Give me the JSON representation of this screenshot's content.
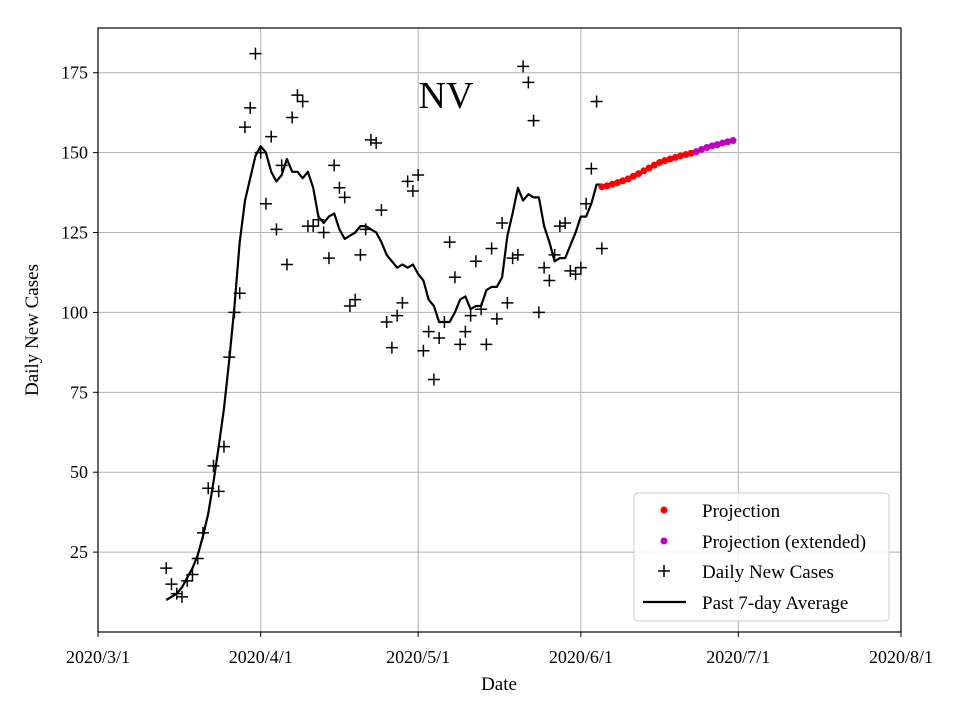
{
  "chart_data": {
    "type": "line",
    "title": "NV",
    "xlabel": "Date",
    "ylabel": "Daily New Cases",
    "xlim_day": [
      0,
      153
    ],
    "ylim": [
      0,
      189
    ],
    "x_ticks": [
      {
        "label": "2020/3/1",
        "day": 0
      },
      {
        "label": "2020/4/1",
        "day": 31
      },
      {
        "label": "2020/5/1",
        "day": 61
      },
      {
        "label": "2020/6/1",
        "day": 92
      },
      {
        "label": "2020/7/1",
        "day": 122
      },
      {
        "label": "2020/8/1",
        "day": 153
      }
    ],
    "y_ticks": [
      25,
      50,
      75,
      100,
      125,
      150,
      175
    ],
    "grid": true,
    "legend_position": "lower-right",
    "legend": {
      "projection": "Projection",
      "projection_extended": "Projection (extended)",
      "daily_new_cases": "Daily New Cases",
      "past_7day_average": "Past 7-day Average"
    },
    "colors": {
      "projection": "#ff0000",
      "projection_extended": "#bf00bf",
      "daily_new_cases": "#000000",
      "past_7day_average": "#000000",
      "grid": "#b0b0b0"
    },
    "series": [
      {
        "name": "Daily New Cases",
        "marker": "+",
        "x_day": [
          13,
          14,
          15,
          16,
          17,
          18,
          19,
          20,
          21,
          22,
          23,
          24,
          25,
          26,
          27,
          28,
          29,
          30,
          31,
          32,
          33,
          34,
          35,
          36,
          37,
          38,
          39,
          40,
          41,
          42,
          43,
          44,
          45,
          46,
          47,
          48,
          49,
          50,
          51,
          52,
          53,
          54,
          55,
          56,
          57,
          58,
          59,
          60,
          61,
          62,
          63,
          64,
          65,
          66,
          67,
          68,
          69,
          70,
          71,
          72,
          73,
          74,
          75,
          76,
          77,
          78,
          79,
          80,
          81,
          82,
          83,
          84,
          85,
          86,
          87,
          88,
          89,
          90,
          91,
          92,
          93,
          94,
          95,
          96
        ],
        "values": [
          20,
          15,
          12,
          11,
          16,
          18,
          23,
          31,
          45,
          52,
          44,
          58,
          86,
          100,
          106,
          158,
          164,
          181,
          150,
          134,
          155,
          126,
          146,
          115,
          161,
          168,
          166,
          127,
          127,
          129,
          125,
          117,
          146,
          139,
          136,
          102,
          104,
          118,
          126,
          154,
          153,
          132,
          97,
          89,
          99,
          103,
          141,
          138,
          143,
          88,
          94,
          79,
          92,
          97,
          122,
          111,
          90,
          94,
          99,
          116,
          101,
          90,
          120,
          98,
          128,
          103,
          117,
          118,
          177,
          172,
          160,
          100,
          114,
          110,
          118,
          127,
          128,
          113,
          112,
          114,
          134,
          145,
          166,
          120
        ]
      },
      {
        "name": "Past 7-day Average",
        "x_day": [
          13,
          14,
          15,
          16,
          17,
          18,
          19,
          20,
          21,
          22,
          23,
          24,
          25,
          26,
          27,
          28,
          29,
          30,
          31,
          32,
          33,
          34,
          35,
          36,
          37,
          38,
          39,
          40,
          41,
          42,
          43,
          44,
          45,
          46,
          47,
          48,
          49,
          50,
          51,
          52,
          53,
          54,
          55,
          56,
          57,
          58,
          59,
          60,
          61,
          62,
          63,
          64,
          65,
          66,
          67,
          68,
          69,
          70,
          71,
          72,
          73,
          74,
          75,
          76,
          77,
          78,
          79,
          80,
          81,
          82,
          83,
          84,
          85,
          86,
          87,
          88,
          89,
          90,
          91,
          92,
          93,
          94,
          95,
          96
        ],
        "values": [
          10,
          11,
          12,
          14,
          17,
          20,
          24,
          30,
          37,
          47,
          58,
          70,
          85,
          102,
          122,
          135,
          142,
          149,
          152,
          150,
          144,
          141,
          143,
          148,
          144,
          144,
          142,
          144,
          139,
          130,
          128,
          130,
          131,
          126,
          123,
          124,
          125,
          127,
          127,
          126,
          125,
          122,
          118,
          116,
          114,
          115,
          114,
          115,
          112,
          110,
          104,
          102,
          97,
          97,
          97,
          100,
          104,
          105,
          101,
          102,
          102,
          107,
          108,
          108,
          111,
          124,
          131,
          139,
          135,
          137,
          136,
          136,
          127,
          122,
          116,
          117,
          117,
          121,
          125,
          130,
          130,
          134,
          140,
          140
        ]
      },
      {
        "name": "Projection",
        "marker": "o",
        "x_day": [
          96,
          97,
          98,
          99,
          100,
          101,
          102,
          103,
          104,
          105,
          106,
          107,
          108,
          109,
          110,
          111,
          112,
          113
        ],
        "values": [
          139.3,
          139.6,
          140.1,
          140.6,
          141.2,
          141.8,
          142.6,
          143.4,
          144.3,
          145.2,
          146.1,
          146.9,
          147.5,
          148,
          148.5,
          149,
          149.4,
          149.8
        ]
      },
      {
        "name": "Projection (extended)",
        "marker": "o",
        "x_day": [
          114,
          115,
          116,
          117,
          118,
          119,
          120,
          121
        ],
        "values": [
          150.3,
          151,
          151.6,
          152.1,
          152.5,
          153,
          153.4,
          153.8
        ]
      }
    ]
  }
}
